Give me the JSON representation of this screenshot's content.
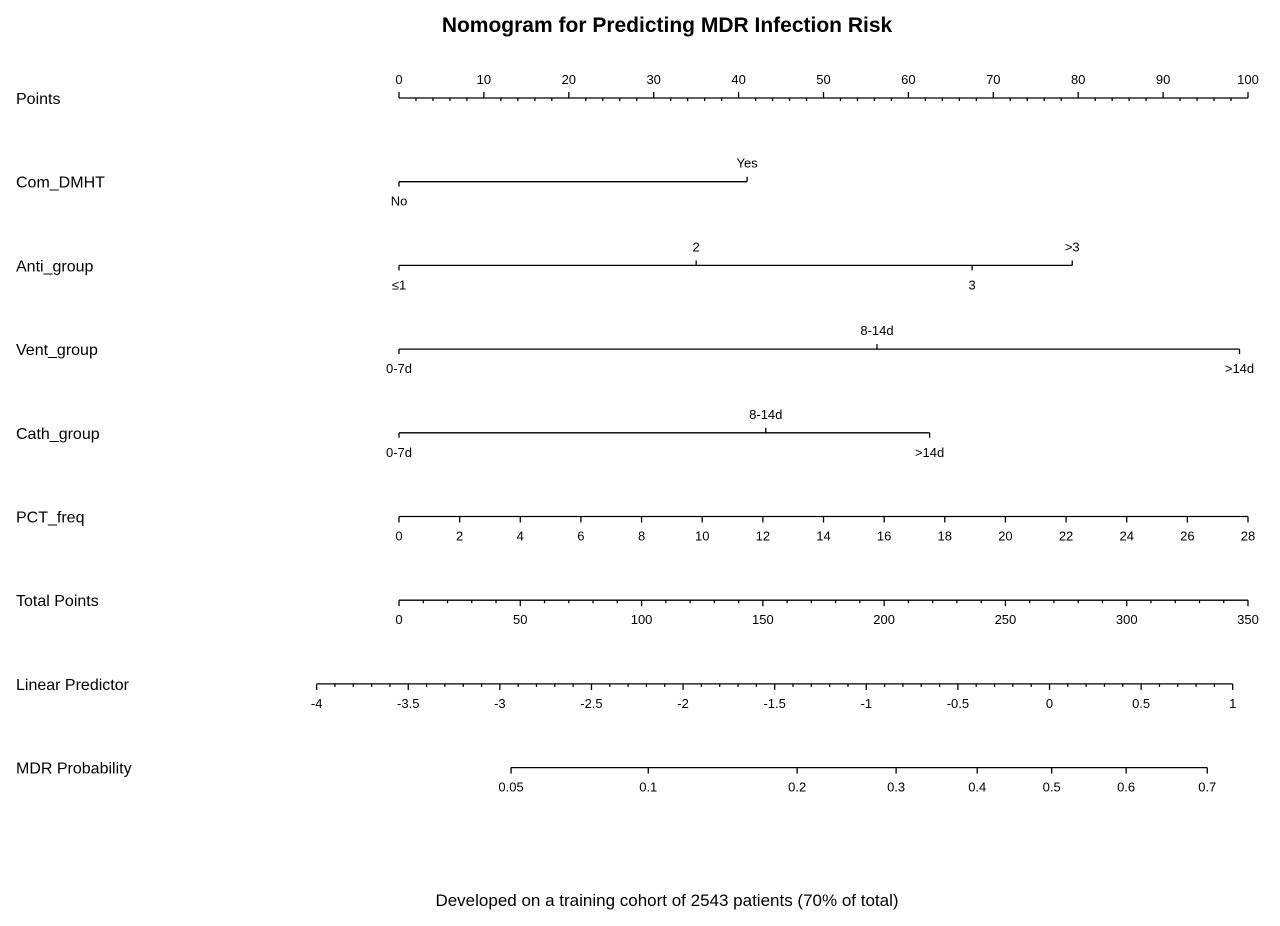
{
  "chart_data": {
    "type": "nomogram",
    "title": "Nomogram for Predicting MDR Infection Risk",
    "footer": "Developed on a training cohort of 2543 patients (70% of total)",
    "rows": [
      {
        "label": "Points",
        "kind": "scale",
        "scale_points": [
          0,
          100
        ],
        "tick_values": [
          0,
          10,
          20,
          30,
          40,
          50,
          60,
          70,
          80,
          90,
          100
        ],
        "tick_labels": [
          "0",
          "10",
          "20",
          "30",
          "40",
          "50",
          "60",
          "70",
          "80",
          "90",
          "100"
        ],
        "minor_step": 2
      },
      {
        "label": "Com_DMHT",
        "kind": "categorical",
        "levels": [
          {
            "label": "No",
            "points": 0,
            "side": "below"
          },
          {
            "label": "Yes",
            "points": 41,
            "side": "above"
          }
        ]
      },
      {
        "label": "Anti_group",
        "kind": "categorical",
        "levels": [
          {
            "label": "≤1",
            "points": 0,
            "side": "below"
          },
          {
            "label": "2",
            "points": 35,
            "side": "above"
          },
          {
            "label": "3",
            "points": 67.5,
            "side": "below"
          },
          {
            "label": ">3",
            "points": 79.3,
            "side": "above"
          }
        ]
      },
      {
        "label": "Vent_group",
        "kind": "categorical",
        "levels": [
          {
            "label": "0-7d",
            "points": 0,
            "side": "below"
          },
          {
            "label": "8-14d",
            "points": 56.3,
            "side": "above"
          },
          {
            "label": ">14d",
            "points": 99,
            "side": "below"
          }
        ]
      },
      {
        "label": "Cath_group",
        "kind": "categorical",
        "levels": [
          {
            "label": "0-7d",
            "points": 0,
            "side": "below"
          },
          {
            "label": "8-14d",
            "points": 43.2,
            "side": "above"
          },
          {
            "label": ">14d",
            "points": 62.5,
            "side": "below"
          }
        ]
      },
      {
        "label": "PCT_freq",
        "kind": "scale",
        "scale_points": [
          0,
          100
        ],
        "tick_values": [
          0,
          2,
          4,
          6,
          8,
          10,
          12,
          14,
          16,
          18,
          20,
          22,
          24,
          26,
          28
        ],
        "tick_labels": [
          "0",
          "2",
          "4",
          "6",
          "8",
          "10",
          "12",
          "14",
          "16",
          "18",
          "20",
          "22",
          "24",
          "26",
          "28"
        ],
        "value_range": [
          0,
          28
        ]
      },
      {
        "label": "Total Points",
        "kind": "scale",
        "scale_points": [
          0,
          100
        ],
        "tick_values": [
          0,
          50,
          100,
          150,
          200,
          250,
          300,
          350
        ],
        "tick_labels": [
          "0",
          "50",
          "100",
          "150",
          "200",
          "250",
          "300",
          "350"
        ],
        "value_range": [
          0,
          350
        ],
        "minor_step": 10
      },
      {
        "label": "Linear Predictor",
        "kind": "scale",
        "scale_points": [
          -9.7,
          98.2
        ],
        "tick_values": [
          -4,
          -3.5,
          -3,
          -2.5,
          -2,
          -1.5,
          -1,
          -0.5,
          0,
          0.5,
          1
        ],
        "tick_labels": [
          "-4",
          "-3.5",
          "-3",
          "-2.5",
          "-2",
          "-1.5",
          "-1",
          "-0.5",
          "0",
          "0.5",
          "1"
        ],
        "value_range": [
          -4,
          1
        ],
        "minor_step": 0.1
      },
      {
        "label": "MDR Probability",
        "kind": "scale",
        "scale_points": [
          13.2,
          95.2
        ],
        "tick_values": [
          0.05,
          0.1,
          0.2,
          0.3,
          0.4,
          0.5,
          0.6,
          0.7
        ],
        "tick_labels": [
          "0.05",
          "0.1",
          "0.2",
          "0.3",
          "0.4",
          "0.5",
          "0.6",
          "0.7"
        ],
        "value_range": [
          0.05,
          0.7
        ],
        "scale": "logit"
      }
    ]
  }
}
